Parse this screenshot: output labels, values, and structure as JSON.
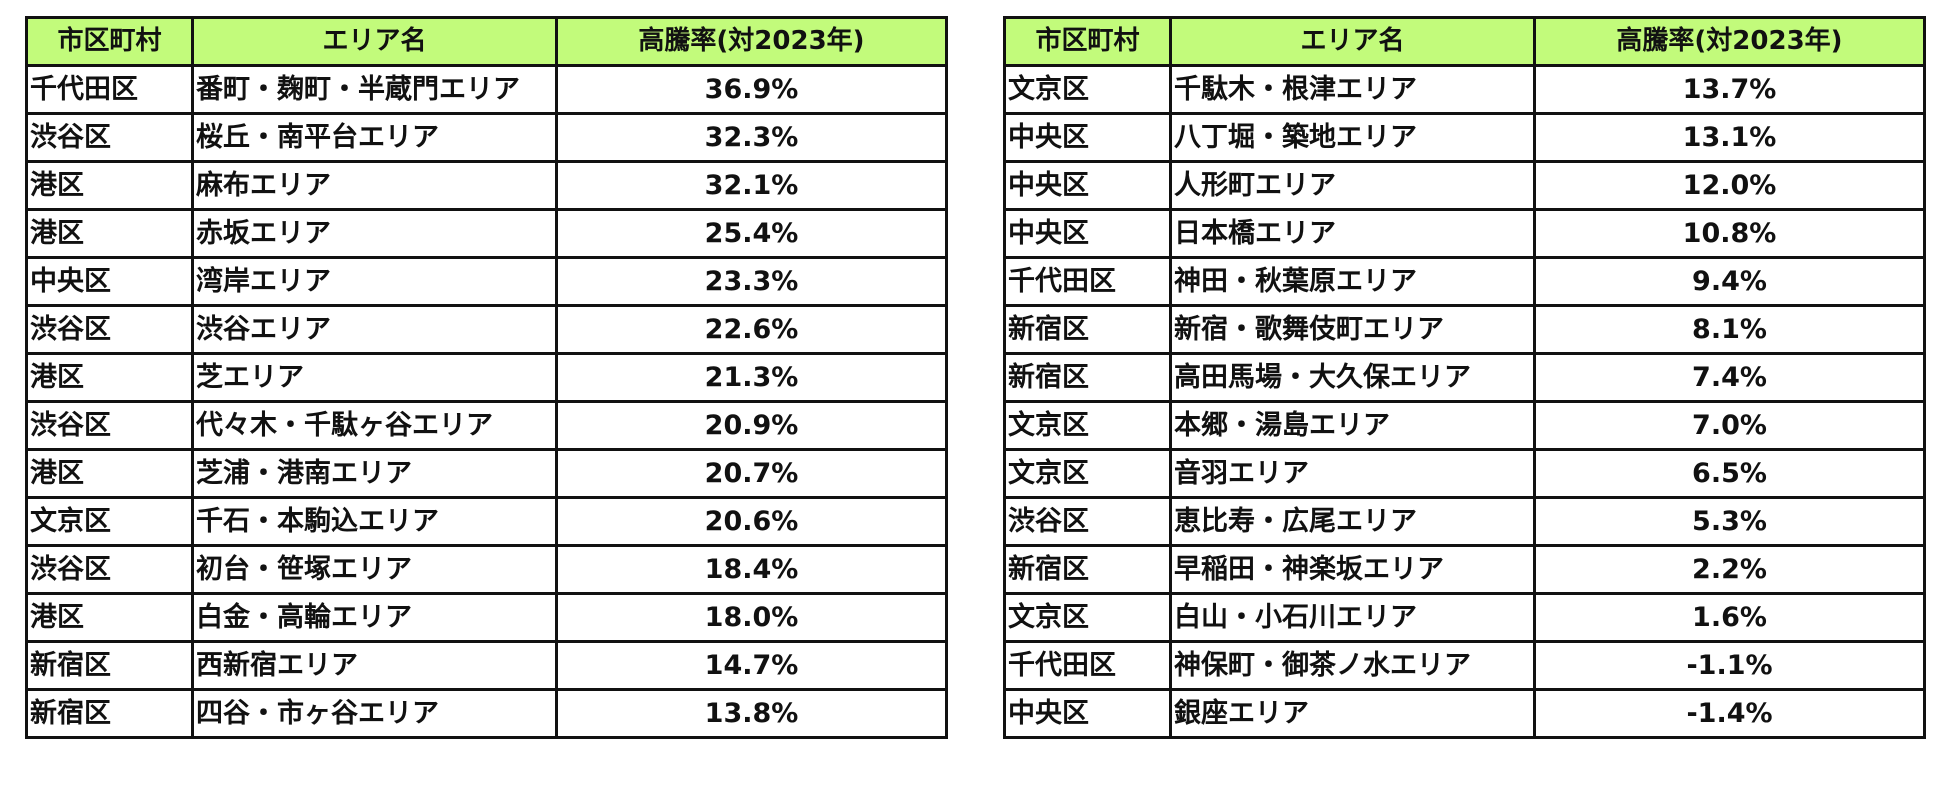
{
  "headers": {
    "city": "市区町村",
    "area": "エリア名",
    "rate": "高騰率(対2023年)"
  },
  "left_table": {
    "rows": [
      {
        "city": "千代田区",
        "area": "番町・麹町・半蔵門エリア",
        "rate": "36.9%"
      },
      {
        "city": "渋谷区",
        "area": "桜丘・南平台エリア",
        "rate": "32.3%"
      },
      {
        "city": "港区",
        "area": "麻布エリア",
        "rate": "32.1%"
      },
      {
        "city": "港区",
        "area": "赤坂エリア",
        "rate": "25.4%"
      },
      {
        "city": "中央区",
        "area": "湾岸エリア",
        "rate": "23.3%"
      },
      {
        "city": "渋谷区",
        "area": "渋谷エリア",
        "rate": "22.6%"
      },
      {
        "city": "港区",
        "area": "芝エリア",
        "rate": "21.3%"
      },
      {
        "city": "渋谷区",
        "area": "代々木・千駄ヶ谷エリア",
        "rate": "20.9%"
      },
      {
        "city": "港区",
        "area": "芝浦・港南エリア",
        "rate": "20.7%"
      },
      {
        "city": "文京区",
        "area": "千石・本駒込エリア",
        "rate": "20.6%"
      },
      {
        "city": "渋谷区",
        "area": "初台・笹塚エリア",
        "rate": "18.4%"
      },
      {
        "city": "港区",
        "area": "白金・高輪エリア",
        "rate": "18.0%"
      },
      {
        "city": "新宿区",
        "area": "西新宿エリア",
        "rate": "14.7%"
      },
      {
        "city": "新宿区",
        "area": "四谷・市ヶ谷エリア",
        "rate": "13.8%"
      }
    ]
  },
  "right_table": {
    "rows": [
      {
        "city": "文京区",
        "area": "千駄木・根津エリア",
        "rate": "13.7%"
      },
      {
        "city": "中央区",
        "area": "八丁堀・築地エリア",
        "rate": "13.1%"
      },
      {
        "city": "中央区",
        "area": "人形町エリア",
        "rate": "12.0%"
      },
      {
        "city": "中央区",
        "area": "日本橋エリア",
        "rate": "10.8%"
      },
      {
        "city": "千代田区",
        "area": "神田・秋葉原エリア",
        "rate": "9.4%"
      },
      {
        "city": "新宿区",
        "area": "新宿・歌舞伎町エリア",
        "rate": "8.1%"
      },
      {
        "city": "新宿区",
        "area": "高田馬場・大久保エリア",
        "rate": "7.4%"
      },
      {
        "city": "文京区",
        "area": "本郷・湯島エリア",
        "rate": "7.0%"
      },
      {
        "city": "文京区",
        "area": "音羽エリア",
        "rate": "6.5%"
      },
      {
        "city": "渋谷区",
        "area": "恵比寿・広尾エリア",
        "rate": "5.3%"
      },
      {
        "city": "新宿区",
        "area": "早稲田・神楽坂エリア",
        "rate": "2.2%"
      },
      {
        "city": "文京区",
        "area": "白山・小石川エリア",
        "rate": "1.6%"
      },
      {
        "city": "千代田区",
        "area": "神保町・御茶ノ水エリア",
        "rate": "-1.1%"
      },
      {
        "city": "中央区",
        "area": "銀座エリア",
        "rate": "-1.4%"
      }
    ]
  }
}
